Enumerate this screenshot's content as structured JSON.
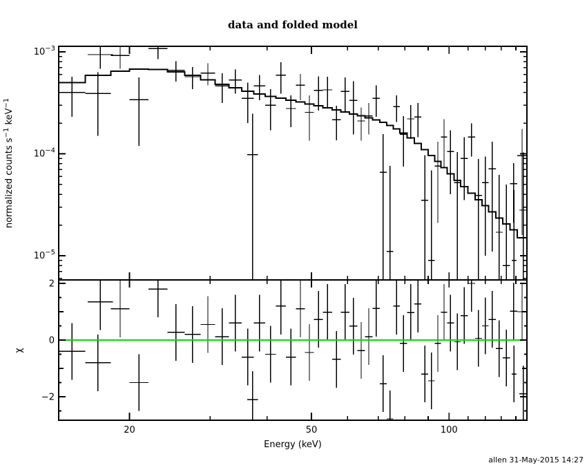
{
  "chart_data": {
    "type": "scatter",
    "title": "data and folded model",
    "xlabel": "Energy (keV)",
    "timestamp": "allen 31-May-2015 14:27",
    "xscale": "log",
    "xlim": [
      14,
      148
    ],
    "x_ticks": {
      "major": [
        20,
        50,
        100
      ],
      "major_labels": [
        "20",
        "50",
        "100"
      ],
      "minor": [
        30,
        40,
        60,
        70,
        80,
        90,
        110,
        120,
        130,
        140
      ]
    },
    "colors": {
      "foreground": "#000000",
      "background": "#ffffff",
      "data": "#000000",
      "model": "#000000",
      "zero_line": "#00dd00"
    },
    "top_panel": {
      "ylabel_parts": [
        {
          "t": "normalized counts s",
          "sup": false
        },
        {
          "t": "−1",
          "sup": true
        },
        {
          "t": " keV",
          "sup": false
        },
        {
          "t": "−1",
          "sup": true
        }
      ],
      "yscale": "log",
      "ylim": [
        5.8e-06,
        0.00113
      ],
      "y_ticks": {
        "major": [
          0.001,
          0.0001,
          1e-05
        ],
        "labels": [
          {
            "v": 0.001,
            "base": "10",
            "exp": "−3"
          },
          {
            "v": 0.0001,
            "base": "10",
            "exp": "−4"
          },
          {
            "v": 1e-05,
            "base": "10",
            "exp": "−5"
          }
        ],
        "minor": [
          6e-06,
          7e-06,
          8e-06,
          9e-06,
          2e-05,
          3e-05,
          4e-05,
          5e-05,
          6e-05,
          7e-05,
          8e-05,
          9e-05,
          0.0002,
          0.0003,
          0.0004,
          0.0005,
          0.0006,
          0.0007,
          0.0008,
          0.0009
        ]
      },
      "model_columns": [
        "e_lo_keV",
        "e_hi_keV",
        "model_cts_s_keV"
      ],
      "model_bins": [
        [
          14,
          16,
          0.0005
        ],
        [
          16,
          18.2,
          0.00059
        ],
        [
          18.2,
          20,
          0.000645
        ],
        [
          20,
          22,
          0.000675
        ],
        [
          22,
          24.2,
          0.00067
        ],
        [
          24.2,
          26.4,
          0.000636
        ],
        [
          26.4,
          28.6,
          0.000588
        ],
        [
          28.6,
          30.8,
          0.00053
        ],
        [
          30.8,
          33,
          0.00048
        ],
        [
          33,
          35.2,
          0.000445
        ],
        [
          35.2,
          37.4,
          0.000412
        ],
        [
          37.4,
          39.6,
          0.000386
        ],
        [
          39.6,
          41.8,
          0.000366
        ],
        [
          41.8,
          44,
          0.00035
        ],
        [
          44,
          46.2,
          0.000336
        ],
        [
          46.2,
          48.4,
          0.000322
        ],
        [
          48.4,
          50.6,
          0.000308
        ],
        [
          50.6,
          53,
          0.000295
        ],
        [
          53,
          55.5,
          0.000282
        ],
        [
          55.5,
          58,
          0.00027
        ],
        [
          58,
          60.5,
          0.000258
        ],
        [
          60.5,
          63,
          0.000246
        ],
        [
          63,
          65.5,
          0.000236
        ],
        [
          65.5,
          68,
          0.000226
        ],
        [
          68,
          70.5,
          0.000215
        ],
        [
          70.5,
          73,
          0.000203
        ],
        [
          73,
          75.5,
          0.00019
        ],
        [
          75.5,
          78,
          0.000176
        ],
        [
          78,
          81,
          0.00016
        ],
        [
          81,
          84,
          0.000143
        ],
        [
          84,
          87,
          0.000126
        ],
        [
          87,
          90,
          0.00011
        ],
        [
          90,
          93,
          9.6e-05
        ],
        [
          93,
          96,
          8.4e-05
        ],
        [
          96,
          99,
          7.3e-05
        ],
        [
          99,
          102.5,
          6.35e-05
        ],
        [
          102.5,
          106,
          5.5e-05
        ],
        [
          106,
          110,
          4.75e-05
        ],
        [
          110,
          114,
          4.1e-05
        ],
        [
          114,
          118,
          3.55e-05
        ],
        [
          118,
          122,
          3.1e-05
        ],
        [
          122,
          126.5,
          2.7e-05
        ],
        [
          126.5,
          131,
          2.35e-05
        ],
        [
          131,
          136,
          2.05e-05
        ],
        [
          136,
          141,
          1.8e-05
        ],
        [
          141,
          148,
          1.5e-05
        ]
      ]
    },
    "bottom_panel": {
      "ylabel": "χ",
      "yscale": "linear",
      "ylim": [
        -2.83,
        2.12
      ],
      "zero_line": 0,
      "chi_error": 1.0,
      "y_ticks": {
        "major": [
          -2,
          0,
          2
        ],
        "labels": [
          {
            "v": 2,
            "t": "2"
          },
          {
            "v": 0,
            "t": "0"
          },
          {
            "v": -2,
            "t": "−2"
          }
        ],
        "minor": [
          -1,
          1
        ],
        "sub": [
          -2.5,
          -1.5,
          -0.5,
          0.5,
          1.5
        ]
      }
    },
    "bins_columns": [
      "e_lo_keV",
      "e_hi_keV",
      "value_cts_s_keV",
      "error_cts_s_keV",
      "chi"
    ],
    "bins": [
      [
        14,
        16,
        0.0004,
        0.00017,
        -0.4
      ],
      [
        16,
        18.2,
        0.00039,
        0.00024,
        -0.8
      ],
      [
        16.2,
        18.4,
        0.00094,
        0.00026,
        1.35
      ],
      [
        18.2,
        20,
        0.00092,
        0.00024,
        1.1
      ],
      [
        20,
        22,
        0.00034,
        0.00022,
        -1.5
      ],
      [
        22,
        24.2,
        0.00108,
        0.00023,
        1.8
      ],
      [
        24.2,
        26.4,
        0.00066,
        0.00015,
        0.27
      ],
      [
        26.4,
        28.6,
        0.00057,
        0.00014,
        0.2
      ],
      [
        28.6,
        30.8,
        0.00062,
        0.00015,
        0.55
      ],
      [
        30.8,
        33,
        0.000465,
        0.00015,
        0.12
      ],
      [
        33,
        35.2,
        0.00053,
        0.00014,
        0.6
      ],
      [
        35.2,
        37.4,
        0.00035,
        0.00015,
        -0.6
      ],
      [
        36.2,
        38.2,
        9.8e-05,
        0.00015,
        -2.1
      ],
      [
        37.4,
        39.6,
        0.000465,
        0.00013,
        0.6
      ],
      [
        39.6,
        41.8,
        0.0003,
        0.00013,
        -0.5
      ],
      [
        41.8,
        44,
        0.00059,
        0.0002,
        1.2
      ],
      [
        44,
        46.2,
        0.000278,
        9.5e-05,
        -0.6
      ],
      [
        46.2,
        48.4,
        0.00047,
        0.000135,
        1.1
      ],
      [
        48.4,
        50.6,
        0.000255,
        0.00012,
        -0.44
      ],
      [
        50.6,
        53,
        0.00042,
        0.000155,
        0.73
      ],
      [
        53,
        55.5,
        0.000424,
        0.000145,
        0.98
      ],
      [
        55.5,
        58,
        0.000216,
        8e-05,
        -0.68
      ],
      [
        58,
        60.5,
        0.00041,
        0.00015,
        0.98
      ],
      [
        60.5,
        63,
        0.000335,
        0.00018,
        0.49
      ],
      [
        63,
        65.5,
        0.00021,
        7.5e-05,
        -0.37
      ],
      [
        65.5,
        68,
        0.000235,
        8e-05,
        0.12
      ],
      [
        68,
        70.5,
        0.00035,
        0.00012,
        1.12
      ],
      [
        70.5,
        73,
        6.6e-05,
        9e-05,
        -1.54
      ],
      [
        73,
        75.5,
        1.1e-05,
        6.5e-05,
        -2.78
      ],
      [
        75.5,
        78,
        0.00029,
        8.5e-05,
        1.2
      ],
      [
        78,
        81,
        0.000155,
        8e-05,
        -0.12
      ],
      [
        81,
        84,
        0.00022,
        8e-05,
        0.97
      ],
      [
        84,
        87,
        0.00023,
        8.5e-05,
        1.27
      ],
      [
        87,
        90,
        3.5e-05,
        6.2e-05,
        -1.2
      ],
      [
        90,
        93,
        9e-06,
        6e-05,
        -1.44
      ],
      [
        93,
        96,
        7.6e-05,
        5.5e-05,
        -0.12
      ],
      [
        96,
        99,
        0.000146,
        7.2e-05,
        0.98
      ],
      [
        99,
        102.5,
        0.000105,
        6.5e-05,
        0.6
      ],
      [
        102.5,
        106,
        5.2e-05,
        5.2e-05,
        -0.06
      ],
      [
        106,
        110,
        9e-05,
        5.5e-05,
        0.86
      ],
      [
        110,
        114,
        0.000146,
        5.2e-05,
        2.0
      ],
      [
        114,
        118,
        3.9e-05,
        5e-05,
        0.06
      ],
      [
        118,
        122,
        5.2e-05,
        4.2e-05,
        0.5
      ],
      [
        122,
        126.5,
        7.1e-05,
        6e-05,
        0.73
      ],
      [
        126.5,
        131,
        1.7e-05,
        4.5e-05,
        -0.3
      ],
      [
        131,
        136,
        8e-06,
        4.2e-05,
        -0.63
      ],
      [
        136,
        141,
        5.1e-05,
        3e-05,
        1.02
      ],
      [
        137,
        140.5,
        9e-06,
        3.5e-05,
        -1.2
      ],
      [
        141,
        148,
        9.6e-05,
        8e-05,
        1.0
      ],
      [
        142.5,
        148,
        2.8e-05,
        7.5e-05,
        -1.9
      ]
    ]
  }
}
